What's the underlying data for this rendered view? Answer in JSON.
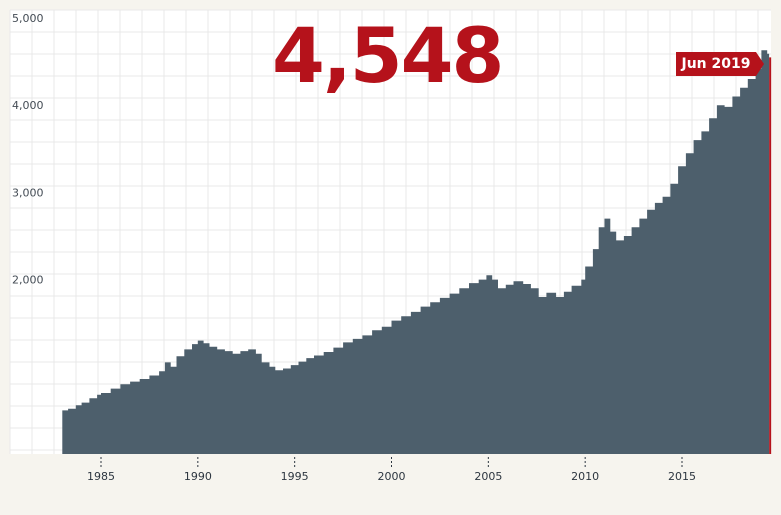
{
  "colors": {
    "background": "#ffffff",
    "page": "#f6f4ee",
    "area": "#4d5f6c",
    "accent": "#b5121b",
    "grid": "#e9e9e9"
  },
  "headline": {
    "value": "4,548"
  },
  "badge": {
    "label": "Jun 2019"
  },
  "chart_data": {
    "type": "area",
    "title": "",
    "xlabel": "",
    "ylabel": "",
    "xlim": [
      1980.0,
      2019.6
    ],
    "ylim": [
      0,
      5000
    ],
    "grid": true,
    "yticks": [
      {
        "value": 2000,
        "label": "2,000"
      },
      {
        "value": 3000,
        "label": "3,000"
      },
      {
        "value": 4000,
        "label": "4,000"
      },
      {
        "value": 5000,
        "label": "5,000"
      }
    ],
    "xticks": [
      {
        "value": 1985,
        "label": "1985"
      },
      {
        "value": 1990,
        "label": "1990"
      },
      {
        "value": 1995,
        "label": "1995"
      },
      {
        "value": 2000,
        "label": "2000"
      },
      {
        "value": 2005,
        "label": "2005"
      },
      {
        "value": 2010,
        "label": "2010"
      },
      {
        "value": 2015,
        "label": "2015"
      }
    ],
    "series": [
      {
        "points": [
          [
            1983.0,
            500
          ],
          [
            1983.3,
            520
          ],
          [
            1983.7,
            560
          ],
          [
            1984.0,
            590
          ],
          [
            1984.4,
            640
          ],
          [
            1984.8,
            680
          ],
          [
            1985.0,
            700
          ],
          [
            1985.5,
            750
          ],
          [
            1986.0,
            800
          ],
          [
            1986.5,
            830
          ],
          [
            1987.0,
            860
          ],
          [
            1987.5,
            900
          ],
          [
            1988.0,
            950
          ],
          [
            1988.3,
            1050
          ],
          [
            1988.6,
            1000
          ],
          [
            1988.9,
            1120
          ],
          [
            1989.3,
            1200
          ],
          [
            1989.7,
            1260
          ],
          [
            1990.0,
            1300
          ],
          [
            1990.3,
            1270
          ],
          [
            1990.6,
            1230
          ],
          [
            1991.0,
            1200
          ],
          [
            1991.4,
            1180
          ],
          [
            1991.8,
            1150
          ],
          [
            1992.2,
            1180
          ],
          [
            1992.6,
            1200
          ],
          [
            1993.0,
            1150
          ],
          [
            1993.3,
            1050
          ],
          [
            1993.7,
            1000
          ],
          [
            1994.0,
            960
          ],
          [
            1994.4,
            980
          ],
          [
            1994.8,
            1020
          ],
          [
            1995.2,
            1060
          ],
          [
            1995.6,
            1100
          ],
          [
            1996.0,
            1130
          ],
          [
            1996.5,
            1170
          ],
          [
            1997.0,
            1220
          ],
          [
            1997.5,
            1280
          ],
          [
            1998.0,
            1320
          ],
          [
            1998.5,
            1360
          ],
          [
            1999.0,
            1420
          ],
          [
            1999.5,
            1460
          ],
          [
            2000.0,
            1530
          ],
          [
            2000.5,
            1580
          ],
          [
            2001.0,
            1630
          ],
          [
            2001.5,
            1690
          ],
          [
            2002.0,
            1740
          ],
          [
            2002.5,
            1790
          ],
          [
            2003.0,
            1840
          ],
          [
            2003.5,
            1900
          ],
          [
            2004.0,
            1960
          ],
          [
            2004.5,
            2000
          ],
          [
            2004.9,
            2050
          ],
          [
            2005.2,
            2000
          ],
          [
            2005.5,
            1900
          ],
          [
            2005.9,
            1940
          ],
          [
            2006.3,
            1980
          ],
          [
            2006.8,
            1950
          ],
          [
            2007.2,
            1900
          ],
          [
            2007.6,
            1800
          ],
          [
            2008.0,
            1850
          ],
          [
            2008.5,
            1800
          ],
          [
            2008.9,
            1860
          ],
          [
            2009.3,
            1930
          ],
          [
            2009.8,
            2000
          ],
          [
            2010.0,
            2150
          ],
          [
            2010.4,
            2350
          ],
          [
            2010.7,
            2600
          ],
          [
            2011.0,
            2700
          ],
          [
            2011.3,
            2550
          ],
          [
            2011.6,
            2450
          ],
          [
            2012.0,
            2500
          ],
          [
            2012.4,
            2600
          ],
          [
            2012.8,
            2700
          ],
          [
            2013.2,
            2800
          ],
          [
            2013.6,
            2880
          ],
          [
            2014.0,
            2950
          ],
          [
            2014.4,
            3100
          ],
          [
            2014.8,
            3300
          ],
          [
            2015.2,
            3450
          ],
          [
            2015.6,
            3600
          ],
          [
            2016.0,
            3700
          ],
          [
            2016.4,
            3850
          ],
          [
            2016.8,
            4000
          ],
          [
            2017.2,
            3980
          ],
          [
            2017.6,
            4100
          ],
          [
            2018.0,
            4200
          ],
          [
            2018.4,
            4300
          ],
          [
            2018.8,
            4420
          ],
          [
            2019.1,
            4630
          ],
          [
            2019.4,
            4590
          ],
          [
            2019.5,
            4548
          ]
        ]
      }
    ]
  }
}
